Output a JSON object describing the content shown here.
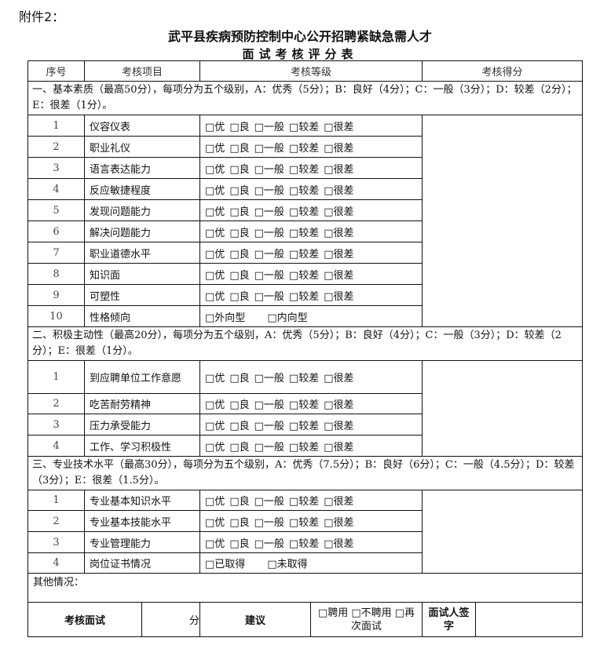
{
  "attachment_label": "附件2：",
  "title_line1": "武平县疾病预防控制中心公开招聘紧缺急需人才",
  "title_line2": "面试考核评分表",
  "headers": [
    "序号",
    "考核项目",
    "考核等级",
    "考核得分"
  ],
  "sections": [
    {
      "heading": "一、基本素质（最高50分），每项分为五个级别，A：优秀（5分）；B：良好（4分）；C：一般（3分）；D：较差（2分）；E：很差（1分）。",
      "rows": [
        {
          "no": "1",
          "item": "仪容仪表",
          "options": [
            "□优",
            "□良",
            "□一般",
            "□较差",
            "□很差"
          ]
        },
        {
          "no": "2",
          "item": "职业礼仪",
          "options": [
            "□优",
            "□良",
            "□一般",
            "□较差",
            "□很差"
          ]
        },
        {
          "no": "3",
          "item": "语言表达能力",
          "options": [
            "□优",
            "□良",
            "□一般",
            "□较差",
            "□很差"
          ]
        },
        {
          "no": "4",
          "item": "反应敏捷程度",
          "options": [
            "□优",
            "□良",
            "□一般",
            "□较差",
            "□很差"
          ]
        },
        {
          "no": "5",
          "item": "发现问题能力",
          "options": [
            "□优",
            "□良",
            "□一般",
            "□较差",
            "□很差"
          ]
        },
        {
          "no": "6",
          "item": "解决问题能力",
          "options": [
            "□优",
            "□良",
            "□一般",
            "□较差",
            "□很差"
          ]
        },
        {
          "no": "7",
          "item": "职业道德水平",
          "options": [
            "□优",
            "□良",
            "□一般",
            "□较差",
            "□很差"
          ]
        },
        {
          "no": "8",
          "item": "知识面",
          "options": [
            "□优",
            "□良",
            "□一般",
            "□较差",
            "□很差"
          ]
        },
        {
          "no": "9",
          "item": "可塑性",
          "options": [
            "□优",
            "□良",
            "□一般",
            "□较差",
            "□很差"
          ]
        },
        {
          "no": "10",
          "item": "性格倾向",
          "options": [
            "□外向型",
            "□内向型"
          ]
        }
      ]
    },
    {
      "heading": "二、积极主动性（最高20分），每项分为五个级别，A：优秀（5分）；B：良好（4分）；C：一般（3分）；D：较差（2分）；E：很差（1分）。",
      "rows": [
        {
          "no": "1",
          "item": "到应聘单位工作意愿",
          "options": [
            "□优",
            "□良",
            "□一般",
            "□较差",
            "□很差"
          ]
        },
        {
          "no": "2",
          "item": "吃苦耐劳精神",
          "options": [
            "□优",
            "□良",
            "□一般",
            "□较差",
            "□很差"
          ]
        },
        {
          "no": "3",
          "item": "压力承受能力",
          "options": [
            "□优",
            "□良",
            "□一般",
            "□较差",
            "□很差"
          ]
        },
        {
          "no": "4",
          "item": "工作、学习积极性",
          "options": [
            "□优",
            "□良",
            "□一般",
            "□较差",
            "□很差"
          ]
        }
      ]
    },
    {
      "heading": "三、专业技术水平（最高30分），每项分为五个级别，A：优秀（7.5分）；B：良好（6分）；C：一般（4.5分）；D：较差（3分）；E：很差（1.5分）。",
      "rows": [
        {
          "no": "1",
          "item": "专业基本知识水平",
          "options": [
            "□优",
            "□良",
            "□一般",
            "□较差",
            "□很差"
          ]
        },
        {
          "no": "2",
          "item": "专业基本技能水平",
          "options": [
            "□优",
            "□良",
            "□一般",
            "□较差",
            "□很差"
          ]
        },
        {
          "no": "3",
          "item": "专业管理能力",
          "options": [
            "□优",
            "□良",
            "□一般",
            "□较差",
            "□很差"
          ]
        },
        {
          "no": "4",
          "item": "岗位证书情况",
          "options": [
            "□已取得",
            "□未取得"
          ]
        }
      ]
    }
  ],
  "other_label": "其他情况：",
  "footer": {
    "score_label": "考核面试",
    "score_unit": "分",
    "suggest_label": "建议",
    "suggest_options": "□聘用 □不聘用 □再次面试",
    "signer_label": "面试人签字"
  }
}
